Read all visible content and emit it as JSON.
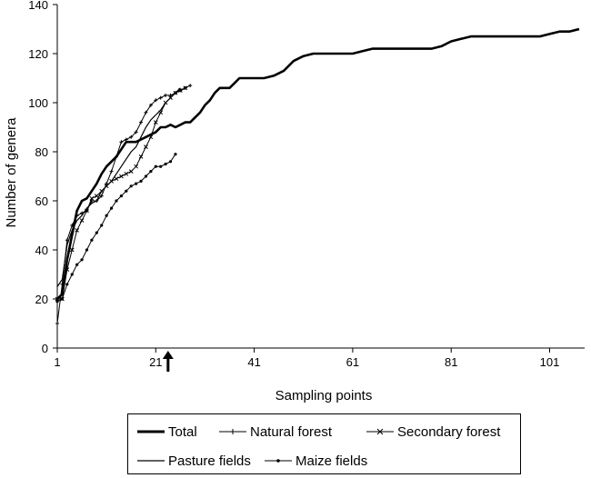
{
  "chart_data": {
    "type": "line",
    "title": "",
    "xlabel": "Sampling points",
    "ylabel": "Number of genera",
    "xlim": [
      1,
      107
    ],
    "ylim": [
      0,
      140
    ],
    "x_ticks": [
      1,
      21,
      41,
      61,
      81,
      101
    ],
    "y_ticks": [
      0,
      20,
      40,
      60,
      80,
      100,
      120,
      140
    ],
    "grid": false,
    "legend_position": "bottom",
    "annotation": {
      "type": "arrow",
      "x": 23.5,
      "pointing": "up"
    },
    "series": [
      {
        "name": "Total",
        "style": "thick-line",
        "x": [
          1,
          2,
          3,
          4,
          5,
          6,
          7,
          8,
          9,
          10,
          11,
          12,
          13,
          14,
          15,
          16,
          17,
          18,
          19,
          20,
          21,
          22,
          23,
          24,
          25,
          26,
          27,
          28,
          29,
          30,
          31,
          32,
          33,
          34,
          35,
          36,
          37,
          38,
          39,
          40,
          41,
          43,
          45,
          47,
          49,
          51,
          53,
          55,
          57,
          59,
          61,
          63,
          65,
          67,
          69,
          71,
          73,
          75,
          77,
          79,
          81,
          83,
          85,
          87,
          89,
          91,
          93,
          95,
          97,
          99,
          101,
          103,
          105,
          107
        ],
        "y": [
          20,
          22,
          36,
          46,
          56,
          60,
          61,
          64,
          67,
          71,
          74,
          76,
          78,
          81,
          84,
          84,
          84,
          85,
          86,
          87,
          88,
          90,
          90,
          91,
          90,
          91,
          92,
          92,
          94,
          96,
          99,
          101,
          104,
          106,
          106,
          106,
          108,
          110,
          110,
          110,
          110,
          110,
          111,
          113,
          117,
          119,
          120,
          120,
          120,
          120,
          120,
          121,
          122,
          122,
          122,
          122,
          122,
          122,
          122,
          123,
          125,
          126,
          127,
          127,
          127,
          127,
          127,
          127,
          127,
          127,
          128,
          129,
          129,
          130
        ]
      },
      {
        "name": "Natural forest",
        "style": "line-plus-marker",
        "x": [
          1,
          2,
          3,
          4,
          5,
          6,
          7,
          8,
          9,
          10,
          11,
          12,
          13,
          14,
          15,
          16,
          17,
          18,
          19,
          20,
          21,
          22,
          23,
          24,
          25,
          26,
          27,
          28
        ],
        "y": [
          10,
          26,
          44,
          50,
          54,
          55,
          56,
          60,
          60,
          62,
          67,
          72,
          78,
          84,
          85,
          86,
          88,
          92,
          96,
          99,
          101,
          102,
          103,
          103,
          104,
          105,
          106,
          107
        ]
      },
      {
        "name": "Secondary forest",
        "style": "line-x-marker",
        "x": [
          1,
          2,
          3,
          4,
          5,
          6,
          7,
          8,
          9,
          10,
          11,
          12,
          13,
          14,
          15,
          16,
          17,
          18,
          19,
          20,
          21,
          22,
          23,
          24,
          25,
          26,
          27
        ],
        "y": [
          20,
          20,
          32,
          40,
          48,
          52,
          56,
          61,
          62,
          64,
          66,
          68,
          69,
          70,
          71,
          72,
          74,
          78,
          82,
          86,
          92,
          96,
          100,
          102,
          104,
          105,
          106
        ]
      },
      {
        "name": "Pasture fields",
        "style": "thin-line",
        "x": [
          1,
          2,
          3,
          4,
          5,
          6,
          7,
          8,
          9,
          10,
          11,
          12,
          13,
          14,
          15,
          16,
          17,
          18,
          19,
          20,
          21,
          22,
          23,
          24,
          25,
          26
        ],
        "y": [
          25,
          28,
          42,
          48,
          52,
          54,
          57,
          59,
          60,
          64,
          66,
          68,
          71,
          74,
          77,
          80,
          82,
          86,
          90,
          93,
          95,
          97,
          100,
          102,
          104,
          106
        ]
      },
      {
        "name": "Maize fields",
        "style": "line-dot-marker",
        "x": [
          1,
          2,
          3,
          4,
          5,
          6,
          7,
          8,
          9,
          10,
          11,
          12,
          13,
          14,
          15,
          16,
          17,
          18,
          19,
          20,
          21,
          22,
          23,
          24,
          25
        ],
        "y": [
          19,
          20,
          26,
          30,
          34,
          36,
          40,
          44,
          47,
          50,
          54,
          57,
          60,
          62,
          64,
          66,
          67,
          68,
          70,
          72,
          74,
          74,
          75,
          76,
          79
        ]
      }
    ]
  }
}
